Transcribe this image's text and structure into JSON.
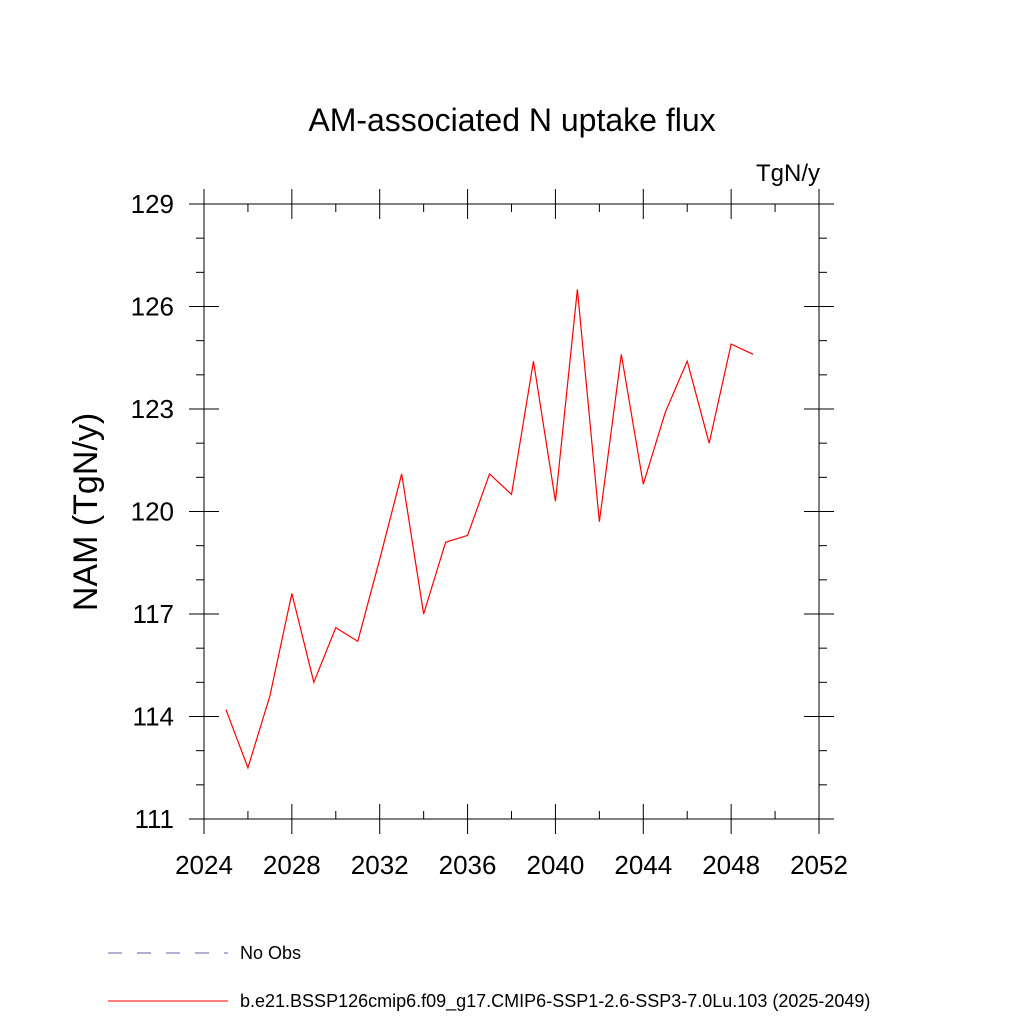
{
  "chart_data": {
    "type": "line",
    "title": "AM-associated N uptake flux",
    "units": "TgN/y",
    "xlabel": "",
    "ylabel": "NAM  (TgN/y)",
    "xlim": [
      2024,
      2052
    ],
    "ylim": [
      111,
      129
    ],
    "x_major_ticks": [
      2024,
      2028,
      2032,
      2036,
      2040,
      2044,
      2048,
      2052
    ],
    "x_tick_labels": [
      "2024",
      "2028",
      "2032",
      "2036",
      "2040",
      "2044",
      "2048",
      "2052"
    ],
    "x_minor_ticks": [
      2026,
      2030,
      2034,
      2038,
      2042,
      2046,
      2050
    ],
    "y_major_ticks": [
      111,
      114,
      117,
      120,
      123,
      126,
      129
    ],
    "y_tick_labels": [
      "111",
      "114",
      "117",
      "120",
      "123",
      "126",
      "129"
    ],
    "y_minor_ticks": [
      112,
      113,
      115,
      116,
      118,
      119,
      121,
      122,
      124,
      125,
      127,
      128
    ],
    "grid": false,
    "series": [
      {
        "name": "b.e21.BSSP126cmip6.f09_g17.CMIP6-SSP1-2.6-SSP3-7.0Lu.103 (2025-2049)",
        "color": "#ff0000",
        "style": "solid",
        "x": [
          2025,
          2026,
          2027,
          2028,
          2029,
          2030,
          2031,
          2032,
          2033,
          2034,
          2035,
          2036,
          2037,
          2038,
          2039,
          2040,
          2041,
          2042,
          2043,
          2044,
          2045,
          2046,
          2047,
          2048,
          2049
        ],
        "values": [
          114.2,
          112.5,
          114.6,
          117.6,
          115.0,
          116.6,
          116.2,
          118.6,
          121.1,
          117.0,
          119.1,
          119.3,
          121.1,
          120.5,
          124.4,
          120.3,
          126.5,
          119.7,
          124.6,
          120.8,
          122.9,
          124.4,
          122.0,
          124.9,
          124.6
        ]
      }
    ],
    "legend": [
      {
        "label": "No Obs",
        "color": "#6b5fa8",
        "style": "dashed"
      },
      {
        "label": "b.e21.BSSP126cmip6.f09_g17.CMIP6-SSP1-2.6-SSP3-7.0Lu.103 (2025-2049)",
        "color": "#ff0000",
        "style": "solid"
      }
    ],
    "legend_position": "bottom"
  }
}
